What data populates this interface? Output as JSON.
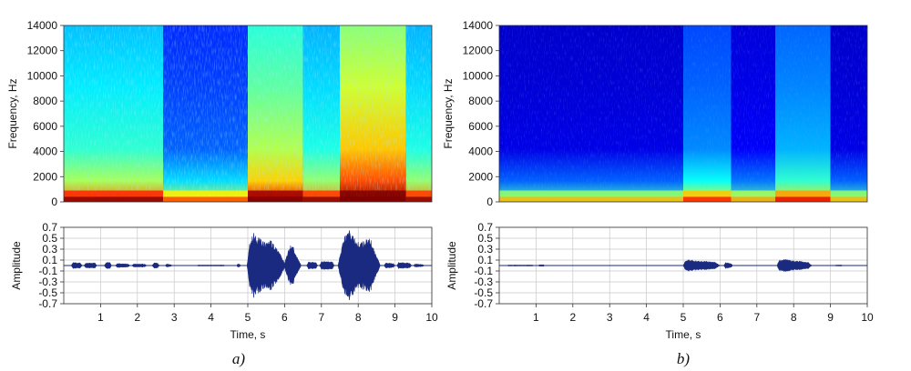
{
  "chart_data": [
    {
      "panel": "a)",
      "type": "heatmap",
      "title": "",
      "xlabel": "",
      "ylabel": "Frequency, Hz",
      "yticks": [
        0,
        2000,
        4000,
        6000,
        8000,
        10000,
        12000,
        14000
      ],
      "ylim": [
        0,
        14000
      ],
      "xlim": [
        0,
        10
      ],
      "colormap": "jet",
      "segments": [
        {
          "t0": 0.0,
          "t1": 2.7,
          "level": 0.42
        },
        {
          "t0": 2.7,
          "t1": 5.0,
          "level": 0.22
        },
        {
          "t0": 5.0,
          "t1": 6.5,
          "level": 0.55
        },
        {
          "t0": 6.5,
          "t1": 7.5,
          "level": 0.4
        },
        {
          "t0": 7.5,
          "t1": 9.3,
          "level": 0.68
        },
        {
          "t0": 9.3,
          "t1": 10.0,
          "level": 0.4
        }
      ]
    },
    {
      "panel": "a)",
      "type": "area",
      "xlabel": "Time, s",
      "ylabel": "Amplitude",
      "xticks": [
        1,
        2,
        3,
        4,
        5,
        6,
        7,
        8,
        9,
        10
      ],
      "yticks": [
        0.7,
        0.5,
        0.3,
        0.1,
        -0.1,
        -0.3,
        -0.5,
        -0.7
      ],
      "ylim": [
        -0.7,
        0.7
      ],
      "xlim": [
        0,
        10
      ],
      "color": "#1a2a80",
      "envelope": [
        {
          "t": 0.2,
          "v": 0.0
        },
        {
          "t": 0.25,
          "v": 0.06
        },
        {
          "t": 0.45,
          "v": 0.05
        },
        {
          "t": 0.5,
          "v": 0.0
        },
        {
          "t": 0.55,
          "v": 0.0
        },
        {
          "t": 0.6,
          "v": 0.05
        },
        {
          "t": 0.85,
          "v": 0.05
        },
        {
          "t": 0.9,
          "v": 0.0
        },
        {
          "t": 1.1,
          "v": 0.0
        },
        {
          "t": 1.15,
          "v": 0.06
        },
        {
          "t": 1.25,
          "v": 0.06
        },
        {
          "t": 1.3,
          "v": 0.0
        },
        {
          "t": 1.4,
          "v": 0.0
        },
        {
          "t": 1.45,
          "v": 0.04
        },
        {
          "t": 1.75,
          "v": 0.03
        },
        {
          "t": 1.8,
          "v": 0.0
        },
        {
          "t": 1.85,
          "v": 0.0
        },
        {
          "t": 1.9,
          "v": 0.03
        },
        {
          "t": 2.2,
          "v": 0.03
        },
        {
          "t": 2.25,
          "v": 0.0
        },
        {
          "t": 2.4,
          "v": 0.0
        },
        {
          "t": 2.45,
          "v": 0.05
        },
        {
          "t": 2.55,
          "v": 0.05
        },
        {
          "t": 2.6,
          "v": 0.0
        },
        {
          "t": 2.75,
          "v": 0.0
        },
        {
          "t": 2.8,
          "v": 0.03
        },
        {
          "t": 2.9,
          "v": 0.02
        },
        {
          "t": 2.95,
          "v": 0.0
        },
        {
          "t": 3.6,
          "v": 0.0
        },
        {
          "t": 3.65,
          "v": 0.01
        },
        {
          "t": 4.35,
          "v": 0.01
        },
        {
          "t": 4.4,
          "v": 0.0
        },
        {
          "t": 4.7,
          "v": 0.0
        },
        {
          "t": 4.72,
          "v": 0.03
        },
        {
          "t": 4.78,
          "v": 0.03
        },
        {
          "t": 4.8,
          "v": 0.0
        },
        {
          "t": 4.98,
          "v": 0.0
        },
        {
          "t": 5.05,
          "v": 0.4
        },
        {
          "t": 5.15,
          "v": 0.62
        },
        {
          "t": 5.3,
          "v": 0.52
        },
        {
          "t": 5.45,
          "v": 0.45
        },
        {
          "t": 5.6,
          "v": 0.5
        },
        {
          "t": 5.75,
          "v": 0.35
        },
        {
          "t": 5.9,
          "v": 0.2
        },
        {
          "t": 6.0,
          "v": 0.05
        },
        {
          "t": 6.1,
          "v": 0.3
        },
        {
          "t": 6.2,
          "v": 0.42
        },
        {
          "t": 6.3,
          "v": 0.22
        },
        {
          "t": 6.45,
          "v": 0.0
        },
        {
          "t": 6.6,
          "v": 0.0
        },
        {
          "t": 6.65,
          "v": 0.07
        },
        {
          "t": 6.85,
          "v": 0.06
        },
        {
          "t": 6.9,
          "v": 0.0
        },
        {
          "t": 6.95,
          "v": 0.0
        },
        {
          "t": 7.0,
          "v": 0.08
        },
        {
          "t": 7.3,
          "v": 0.07
        },
        {
          "t": 7.35,
          "v": 0.0
        },
        {
          "t": 7.45,
          "v": 0.0
        },
        {
          "t": 7.55,
          "v": 0.35
        },
        {
          "t": 7.65,
          "v": 0.6
        },
        {
          "t": 7.75,
          "v": 0.66
        },
        {
          "t": 7.9,
          "v": 0.5
        },
        {
          "t": 8.05,
          "v": 0.42
        },
        {
          "t": 8.2,
          "v": 0.48
        },
        {
          "t": 8.35,
          "v": 0.5
        },
        {
          "t": 8.45,
          "v": 0.25
        },
        {
          "t": 8.55,
          "v": 0.1
        },
        {
          "t": 8.6,
          "v": 0.0
        },
        {
          "t": 8.7,
          "v": 0.0
        },
        {
          "t": 8.75,
          "v": 0.05
        },
        {
          "t": 8.95,
          "v": 0.04
        },
        {
          "t": 9.0,
          "v": 0.0
        },
        {
          "t": 9.05,
          "v": 0.0
        },
        {
          "t": 9.1,
          "v": 0.06
        },
        {
          "t": 9.4,
          "v": 0.05
        },
        {
          "t": 9.45,
          "v": 0.0
        },
        {
          "t": 9.5,
          "v": 0.0
        },
        {
          "t": 9.55,
          "v": 0.03
        },
        {
          "t": 9.75,
          "v": 0.02
        },
        {
          "t": 9.8,
          "v": 0.0
        },
        {
          "t": 10.0,
          "v": 0.0
        }
      ]
    },
    {
      "panel": "b)",
      "type": "heatmap",
      "title": "",
      "xlabel": "",
      "ylabel": "Frequency, Hz",
      "yticks": [
        0,
        2000,
        4000,
        6000,
        8000,
        10000,
        12000,
        14000
      ],
      "ylim": [
        0,
        14000
      ],
      "xlim": [
        0,
        10
      ],
      "colormap": "jet",
      "segments": [
        {
          "t0": 0.0,
          "t1": 5.0,
          "level": 0.1
        },
        {
          "t0": 5.0,
          "t1": 6.3,
          "level": 0.26
        },
        {
          "t0": 6.3,
          "t1": 7.5,
          "level": 0.12
        },
        {
          "t0": 7.5,
          "t1": 9.0,
          "level": 0.3
        },
        {
          "t0": 9.0,
          "t1": 10.0,
          "level": 0.1
        }
      ]
    },
    {
      "panel": "b)",
      "type": "area",
      "xlabel": "Time, s",
      "ylabel": "Amplitude",
      "xticks": [
        1,
        2,
        3,
        4,
        5,
        6,
        7,
        8,
        9,
        10
      ],
      "yticks": [
        0.7,
        0.5,
        0.3,
        0.1,
        -0.1,
        -0.3,
        -0.5,
        -0.7
      ],
      "ylim": [
        -0.7,
        0.7
      ],
      "xlim": [
        0,
        10
      ],
      "color": "#1a2a80",
      "envelope": [
        {
          "t": 0.2,
          "v": 0.0
        },
        {
          "t": 0.25,
          "v": 0.01
        },
        {
          "t": 0.9,
          "v": 0.01
        },
        {
          "t": 0.95,
          "v": 0.0
        },
        {
          "t": 1.05,
          "v": 0.0
        },
        {
          "t": 1.1,
          "v": 0.015
        },
        {
          "t": 1.2,
          "v": 0.015
        },
        {
          "t": 1.25,
          "v": 0.0
        },
        {
          "t": 5.0,
          "v": 0.0
        },
        {
          "t": 5.05,
          "v": 0.08
        },
        {
          "t": 5.15,
          "v": 0.11
        },
        {
          "t": 5.35,
          "v": 0.09
        },
        {
          "t": 5.6,
          "v": 0.08
        },
        {
          "t": 5.85,
          "v": 0.07
        },
        {
          "t": 6.0,
          "v": 0.0
        },
        {
          "t": 6.1,
          "v": 0.0
        },
        {
          "t": 6.15,
          "v": 0.06
        },
        {
          "t": 6.3,
          "v": 0.04
        },
        {
          "t": 6.35,
          "v": 0.0
        },
        {
          "t": 7.55,
          "v": 0.0
        },
        {
          "t": 7.6,
          "v": 0.09
        },
        {
          "t": 7.75,
          "v": 0.12
        },
        {
          "t": 8.0,
          "v": 0.09
        },
        {
          "t": 8.2,
          "v": 0.08
        },
        {
          "t": 8.4,
          "v": 0.06
        },
        {
          "t": 8.5,
          "v": 0.0
        },
        {
          "t": 9.1,
          "v": 0.0
        },
        {
          "t": 9.15,
          "v": 0.01
        },
        {
          "t": 9.3,
          "v": 0.01
        },
        {
          "t": 9.35,
          "v": 0.0
        },
        {
          "t": 10.0,
          "v": 0.0
        }
      ]
    }
  ]
}
